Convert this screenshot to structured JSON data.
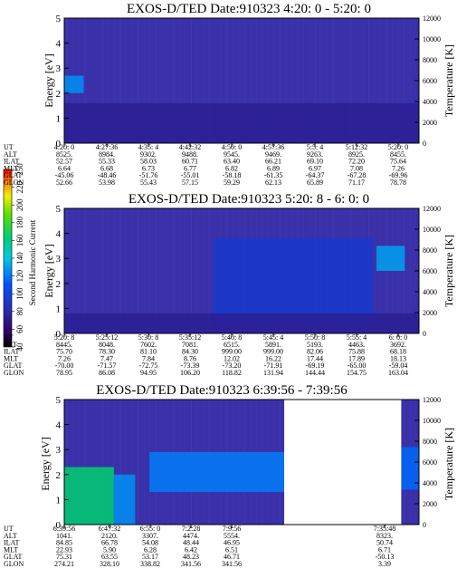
{
  "chart_data": [
    {
      "type": "heatmap",
      "title": "EXOS-D/TED   Date:910323  4:20: 0 - 5:20: 0",
      "ylabel": "Energy [eV]",
      "y2label": "Temperature [K]",
      "ylim": [
        0,
        5
      ],
      "y2lim": [
        0,
        12000
      ],
      "yticks": [
        "0",
        "1",
        "2",
        "3",
        "4",
        "5"
      ],
      "y2ticks": [
        "0",
        "2000",
        "4000",
        "6000",
        "8000",
        "10000",
        "12000"
      ],
      "background_color": "#3a30a8",
      "features": [
        {
          "t0": 0.0,
          "t1": 0.055,
          "e0": 2.0,
          "e1": 2.7,
          "value": 130
        },
        {
          "t0": 0.0,
          "t1": 1.0,
          "e0": 0.0,
          "e1": 1.6,
          "value": 75
        }
      ],
      "table": {
        "row_labels": [
          "UT",
          "ALT",
          "ILAT",
          "MLT",
          "GLAT",
          "GLON"
        ],
        "columns": [
          [
            "4:20: 0",
            "8525.",
            "52.57",
            "6.64",
            "-45.06",
            "52.66"
          ],
          [
            "4:27:36",
            "8984.",
            "55.33",
            "6.68",
            "-48.46",
            "53.98"
          ],
          [
            "4:35: 4",
            "9302.",
            "58.03",
            "6.73",
            "-51.76",
            "55.43"
          ],
          [
            "4:42:32",
            "9488.",
            "60.71",
            "6.77",
            "-55.01",
            "57.15"
          ],
          [
            "4:50: 0",
            "9545.",
            "63.40",
            "6.82",
            "-58.18",
            "59.29"
          ],
          [
            "4:57:36",
            "9469.",
            "66.21",
            "6.89",
            "-61.35",
            "62.13"
          ],
          [
            "5:5: 4",
            "9263.",
            "69.10",
            "6.97",
            "-64.37",
            "65.89"
          ],
          [
            "5:12:32",
            "8925.",
            "72.20",
            "7.08",
            "-67.28",
            "71.17"
          ],
          [
            "5:20: 0",
            "8455.",
            "75.64",
            "7.26",
            "-69.96",
            "78.78"
          ]
        ]
      }
    },
    {
      "type": "heatmap",
      "title": "EXOS-D/TED   Date:910323  5:20: 8 - 6: 0: 0",
      "ylabel": "Energy [eV]",
      "y2label": "Temperature [K]",
      "ylim": [
        0,
        5
      ],
      "y2lim": [
        0,
        12000
      ],
      "yticks": [
        "0",
        "1",
        "2",
        "3",
        "4",
        "5"
      ],
      "y2ticks": [
        "0",
        "2000",
        "4000",
        "6000",
        "8000",
        "10000",
        "12000"
      ],
      "background_color": "#3a30a8",
      "features": [
        {
          "t0": 0.42,
          "t1": 0.87,
          "e0": 0.3,
          "e1": 3.8,
          "value": 95
        },
        {
          "t0": 0.88,
          "t1": 0.96,
          "e0": 2.5,
          "e1": 3.5,
          "value": 135
        },
        {
          "t0": 0.0,
          "t1": 1.0,
          "e0": 0.0,
          "e1": 0.8,
          "value": 75
        }
      ],
      "table": {
        "row_labels": [
          "UT",
          "ALT",
          "ILAT",
          "MLT",
          "GLAT",
          "GLON"
        ],
        "columns": [
          [
            "5:20: 8",
            "8445.",
            "75.70",
            "7.26",
            "-70.00",
            "78.95"
          ],
          [
            "5:25:12",
            "8048.",
            "78.30",
            "7.47",
            "-71.57",
            "86.08"
          ],
          [
            "5:30: 8",
            "7602.",
            "81.10",
            "7.84",
            "-72.75",
            "94.95"
          ],
          [
            "5:35:12",
            "7081.",
            "84.30",
            "8.76",
            "-73.39",
            "106.20"
          ],
          [
            "5:40: 8",
            "6515.",
            "999.00",
            "12.02",
            "-73.20",
            "118.82"
          ],
          [
            "5:45: 4",
            "5891.",
            "999.00",
            "16.22",
            "-71.91",
            "131.94"
          ],
          [
            "5:50: 8",
            "5193.",
            "82.06",
            "17.44",
            "-69.19",
            "144.44"
          ],
          [
            "5:55: 4",
            "4463.",
            "75.88",
            "17.89",
            "-65.00",
            "154.75"
          ],
          [
            "6: 0: 0",
            "3692.",
            "68.18",
            "18.13",
            "-59.04",
            "163.04"
          ]
        ]
      }
    },
    {
      "type": "heatmap",
      "title": "EXOS-D/TED   Date:910323  6:39:56 - 7:39:56",
      "ylabel": "Energy [eV]",
      "y2label": "Temperature [K]",
      "ylim": [
        0,
        5
      ],
      "y2lim": [
        0,
        12000
      ],
      "yticks": [
        "0",
        "1",
        "2",
        "3",
        "4",
        "5"
      ],
      "y2ticks": [
        "0",
        "2000",
        "4000",
        "6000",
        "8000",
        "10000",
        "12000"
      ],
      "background_color": "#3a30a8",
      "data_gap": [
        0.62,
        0.95
      ],
      "features": [
        {
          "t0": 0.0,
          "t1": 0.14,
          "e0": 0.0,
          "e1": 2.3,
          "value": 170
        },
        {
          "t0": 0.14,
          "t1": 0.2,
          "e0": 0.0,
          "e1": 2.0,
          "value": 130
        },
        {
          "t0": 0.24,
          "t1": 0.62,
          "e0": 1.3,
          "e1": 2.9,
          "value": 125
        },
        {
          "t0": 0.95,
          "t1": 1.0,
          "e0": 1.4,
          "e1": 3.1,
          "value": 120
        }
      ],
      "table": {
        "row_labels": [
          "UT",
          "ALT",
          "ILAT",
          "MLT",
          "GLAT",
          "GLON"
        ],
        "columns": [
          [
            "6:39:56",
            "1041.",
            "84.85",
            "22.93",
            "75.31",
            "274.21"
          ],
          [
            "6:47:32",
            "2120.",
            "66.78",
            "5.90",
            "63.55",
            "328.10"
          ],
          [
            "6:55: 0",
            "3307.",
            "54.08",
            "6.28",
            "53.17",
            "338.82"
          ],
          [
            "7:2:28",
            "4474.",
            "48.44",
            "6.42",
            "48.23",
            "341.56"
          ],
          [
            "7:9:56",
            "5554.",
            "46.95",
            "6.51",
            "46.71",
            "341.56"
          ],
          [
            "7:35:48",
            "8323.",
            "50.74",
            "6.71",
            "-50.13",
            "3.39"
          ]
        ]
      }
    }
  ],
  "colorbar": {
    "label": "Second Harmonic Current",
    "range": [
      40,
      250
    ],
    "ticks": [
      "40",
      "60",
      "80",
      "100",
      "120",
      "140",
      "160",
      "180",
      "200",
      "220",
      "250"
    ]
  }
}
